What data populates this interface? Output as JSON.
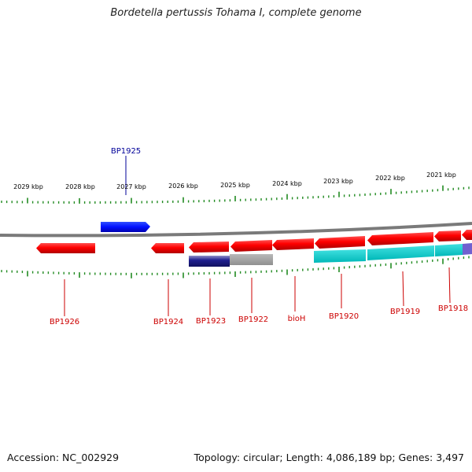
{
  "title": "Bordetella pertussis Tohama I, complete genome",
  "footer": {
    "accession": "Accession: NC_002929",
    "summary": "Topology: circular; Length: 4,086,189 bp; Genes: 3,497"
  },
  "colors": {
    "forward_gene": "#0000ff",
    "reverse_gene": "#ff0000",
    "reverse_gene_label": "#cc0000",
    "forward_gene_label": "#000099",
    "tick": "#228b22",
    "backbone": "#808080",
    "feature_cyan": "#00c8c8",
    "feature_navy": "#1c1c8c",
    "feature_gray": "#a0a0a0",
    "feature_purple": "#7060d0"
  },
  "scale": {
    "unit": "kbp",
    "labels": [
      "2029 kbp",
      "2028 kbp",
      "2027 kbp",
      "2026 kbp",
      "2025 kbp",
      "2024 kbp",
      "2023 kbp",
      "2022 kbp",
      "2021 kbp"
    ]
  },
  "genes": [
    {
      "label": "BP1925",
      "strand": "forward"
    },
    {
      "label": "BP1926",
      "strand": "reverse"
    },
    {
      "label": "BP1924",
      "strand": "reverse"
    },
    {
      "label": "BP1923",
      "strand": "reverse"
    },
    {
      "label": "BP1922",
      "strand": "reverse"
    },
    {
      "label": "bioH",
      "strand": "reverse"
    },
    {
      "label": "BP1920",
      "strand": "reverse"
    },
    {
      "label": "BP1919",
      "strand": "reverse"
    },
    {
      "label": "BP1918",
      "strand": "reverse"
    }
  ]
}
